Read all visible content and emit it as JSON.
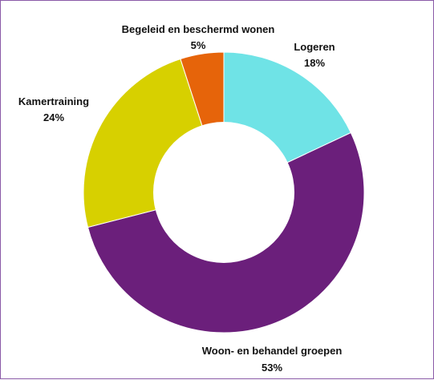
{
  "chart_data": {
    "type": "pie",
    "donut": true,
    "title": "",
    "legend": "none",
    "slices": [
      {
        "label": "Logeren",
        "value": 18,
        "value_label": "18%",
        "color": "#6fe3e6"
      },
      {
        "label": "Woon- en behandel groepen",
        "value": 53,
        "value_label": "53%",
        "color": "#6b1f7b"
      },
      {
        "label": "Kamertraining",
        "value": 24,
        "value_label": "24%",
        "color": "#d7d000"
      },
      {
        "label": "Begeleid en beschermd wonen",
        "value": 5,
        "value_label": "5%",
        "color": "#e6640a"
      }
    ]
  }
}
